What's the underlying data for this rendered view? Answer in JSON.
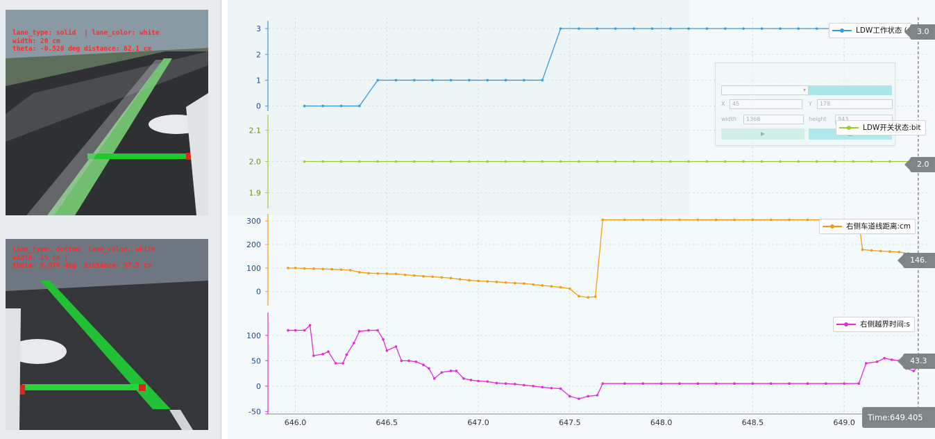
{
  "camera_top": {
    "lines": [
      "lane_type: solid  | lane_color: white",
      "width: 20 cm",
      "theta: -0.520 deg distance: 82.1 cm",
      "",
      ""
    ]
  },
  "camera_bottom": {
    "lines": [
      "lane_type: dotted  lane_color: white",
      "width: 15 cm )",
      "theta: 0.970 deg  distance: 97.5 cm",
      "",
      ""
    ]
  },
  "dialog": {
    "title": "",
    "preset_value": "",
    "region_button": "",
    "x_label": "X",
    "x_value": "45",
    "y_label": "Y",
    "y_value": "178",
    "width_label": "width",
    "width_value": "1368",
    "height_label": "height",
    "height_value": "943"
  },
  "legends": {
    "ldw_work": "LDW工作状态 (",
    "ldw_switch": "LDW开关状态:bit",
    "right_lane_dist": "右侧车道线距离:cm",
    "right_cross_time": "右侧越界时间:s"
  },
  "badges": {
    "ldw_work": "3.0",
    "ldw_switch": "2.0",
    "right_lane_dist": "146.",
    "right_cross_time": "43.3"
  },
  "time_readout": "Time:649.405",
  "colors": {
    "ldw_work": "#3b9ad9",
    "ldw_switch": "#9acd32",
    "right_lane_dist": "#f39c12",
    "right_cross_time": "#e52ad6"
  },
  "chart_data": {
    "type": "line",
    "x_ticks": [
      "646.0",
      "646.5",
      "647.0",
      "647.5",
      "648.0",
      "648.5",
      "649.0"
    ],
    "cursor_x": 649.405,
    "panels": [
      {
        "series": "LDW工作状态",
        "y_ticks": [
          "0",
          "1",
          "2",
          "3"
        ],
        "ylim": [
          -0.2,
          3.3
        ],
        "points": [
          [
            646.05,
            0
          ],
          [
            646.15,
            0
          ],
          [
            646.25,
            0
          ],
          [
            646.35,
            0
          ],
          [
            646.45,
            1
          ],
          [
            646.55,
            1
          ],
          [
            646.65,
            1
          ],
          [
            646.75,
            1
          ],
          [
            646.85,
            1
          ],
          [
            646.95,
            1
          ],
          [
            647.05,
            1
          ],
          [
            647.15,
            1
          ],
          [
            647.25,
            1
          ],
          [
            647.35,
            1
          ],
          [
            647.45,
            3
          ],
          [
            647.55,
            3
          ],
          [
            647.65,
            3
          ],
          [
            647.75,
            3
          ],
          [
            647.85,
            3
          ],
          [
            647.95,
            3
          ],
          [
            648.05,
            3
          ],
          [
            648.15,
            3
          ],
          [
            648.25,
            3
          ],
          [
            648.35,
            3
          ],
          [
            648.45,
            3
          ],
          [
            648.55,
            3
          ],
          [
            648.65,
            3
          ],
          [
            648.75,
            3
          ],
          [
            648.85,
            3
          ],
          [
            648.95,
            3
          ],
          [
            649.05,
            3
          ],
          [
            649.15,
            3
          ],
          [
            649.25,
            3
          ],
          [
            649.4,
            3
          ]
        ]
      },
      {
        "series": "LDW开关状态:bit",
        "y_ticks": [
          "1.9",
          "2.0",
          "2.1"
        ],
        "ylim": [
          1.85,
          2.15
        ],
        "points": [
          [
            646.05,
            2
          ],
          [
            646.15,
            2
          ],
          [
            646.25,
            2
          ],
          [
            646.35,
            2
          ],
          [
            646.45,
            2
          ],
          [
            646.55,
            2
          ],
          [
            646.65,
            2
          ],
          [
            646.75,
            2
          ],
          [
            646.85,
            2
          ],
          [
            646.95,
            2
          ],
          [
            647.05,
            2
          ],
          [
            647.15,
            2
          ],
          [
            647.25,
            2
          ],
          [
            647.35,
            2
          ],
          [
            647.45,
            2
          ],
          [
            647.55,
            2
          ],
          [
            647.65,
            2
          ],
          [
            647.75,
            2
          ],
          [
            647.85,
            2
          ],
          [
            647.95,
            2
          ],
          [
            648.05,
            2
          ],
          [
            648.15,
            2
          ],
          [
            648.25,
            2
          ],
          [
            648.35,
            2
          ],
          [
            648.45,
            2
          ],
          [
            648.55,
            2
          ],
          [
            648.65,
            2
          ],
          [
            648.75,
            2
          ],
          [
            648.85,
            2
          ],
          [
            648.95,
            2
          ],
          [
            649.05,
            2
          ],
          [
            649.15,
            2
          ],
          [
            649.25,
            2
          ],
          [
            649.4,
            2
          ]
        ]
      },
      {
        "series": "右侧车道线距离:cm",
        "y_ticks": [
          "0",
          "100",
          "200",
          "300"
        ],
        "ylim": [
          -60,
          330
        ],
        "points": [
          [
            645.96,
            100
          ],
          [
            646.0,
            100
          ],
          [
            646.05,
            98
          ],
          [
            646.1,
            97
          ],
          [
            646.15,
            96
          ],
          [
            646.2,
            95
          ],
          [
            646.25,
            93
          ],
          [
            646.3,
            91
          ],
          [
            646.35,
            82
          ],
          [
            646.4,
            78
          ],
          [
            646.45,
            77
          ],
          [
            646.5,
            76
          ],
          [
            646.55,
            75
          ],
          [
            646.6,
            71
          ],
          [
            646.65,
            68
          ],
          [
            646.7,
            65
          ],
          [
            646.75,
            63
          ],
          [
            646.8,
            60
          ],
          [
            646.85,
            57
          ],
          [
            646.9,
            52
          ],
          [
            646.95,
            48
          ],
          [
            647.0,
            45
          ],
          [
            647.05,
            43
          ],
          [
            647.1,
            41
          ],
          [
            647.15,
            38
          ],
          [
            647.2,
            36
          ],
          [
            647.25,
            34
          ],
          [
            647.3,
            30
          ],
          [
            647.35,
            26
          ],
          [
            647.4,
            22
          ],
          [
            647.45,
            18
          ],
          [
            647.5,
            12
          ],
          [
            647.55,
            -20
          ],
          [
            647.6,
            -25
          ],
          [
            647.64,
            -22
          ],
          [
            647.68,
            305
          ],
          [
            647.8,
            305
          ],
          [
            647.9,
            305
          ],
          [
            648.0,
            305
          ],
          [
            648.1,
            305
          ],
          [
            648.2,
            305
          ],
          [
            648.3,
            305
          ],
          [
            648.4,
            305
          ],
          [
            648.5,
            305
          ],
          [
            648.6,
            305
          ],
          [
            648.7,
            305
          ],
          [
            648.8,
            305
          ],
          [
            648.9,
            305
          ],
          [
            649.0,
            305
          ],
          [
            649.08,
            305
          ],
          [
            649.1,
            178
          ],
          [
            649.15,
            175
          ],
          [
            649.2,
            172
          ],
          [
            649.25,
            170
          ],
          [
            649.3,
            168
          ],
          [
            649.35,
            162
          ],
          [
            649.4,
            146
          ]
        ]
      },
      {
        "series": "右侧越界时间:s",
        "y_ticks": [
          "-50",
          "0",
          "50",
          "100"
        ],
        "ylim": [
          -55,
          145
        ],
        "points": [
          [
            645.96,
            110
          ],
          [
            646.0,
            110
          ],
          [
            646.05,
            110
          ],
          [
            646.08,
            120
          ],
          [
            646.1,
            60
          ],
          [
            646.15,
            63
          ],
          [
            646.18,
            68
          ],
          [
            646.22,
            45
          ],
          [
            646.26,
            45
          ],
          [
            646.28,
            62
          ],
          [
            646.32,
            85
          ],
          [
            646.35,
            108
          ],
          [
            646.4,
            110
          ],
          [
            646.45,
            110
          ],
          [
            646.48,
            92
          ],
          [
            646.5,
            70
          ],
          [
            646.55,
            78
          ],
          [
            646.58,
            50
          ],
          [
            646.62,
            50
          ],
          [
            646.66,
            48
          ],
          [
            646.7,
            42
          ],
          [
            646.73,
            35
          ],
          [
            646.76,
            15
          ],
          [
            646.8,
            27
          ],
          [
            646.85,
            30
          ],
          [
            646.88,
            30
          ],
          [
            646.92,
            15
          ],
          [
            646.96,
            12
          ],
          [
            647.0,
            10
          ],
          [
            647.05,
            9
          ],
          [
            647.1,
            6
          ],
          [
            647.15,
            5
          ],
          [
            647.2,
            4
          ],
          [
            647.25,
            2
          ],
          [
            647.3,
            0
          ],
          [
            647.35,
            -2
          ],
          [
            647.4,
            -4
          ],
          [
            647.45,
            -5
          ],
          [
            647.5,
            -20
          ],
          [
            647.55,
            -25
          ],
          [
            647.6,
            -20
          ],
          [
            647.65,
            -18
          ],
          [
            647.68,
            5
          ],
          [
            647.8,
            5
          ],
          [
            647.9,
            5
          ],
          [
            648.0,
            5
          ],
          [
            648.1,
            5
          ],
          [
            648.2,
            5
          ],
          [
            648.3,
            5
          ],
          [
            648.4,
            5
          ],
          [
            648.5,
            5
          ],
          [
            648.6,
            5
          ],
          [
            648.7,
            5
          ],
          [
            648.8,
            5
          ],
          [
            648.9,
            5
          ],
          [
            649.0,
            5
          ],
          [
            649.08,
            5
          ],
          [
            649.12,
            45
          ],
          [
            649.18,
            48
          ],
          [
            649.22,
            55
          ],
          [
            649.26,
            52
          ],
          [
            649.3,
            50
          ],
          [
            649.34,
            35
          ],
          [
            649.38,
            30
          ],
          [
            649.42,
            43
          ]
        ]
      }
    ]
  }
}
